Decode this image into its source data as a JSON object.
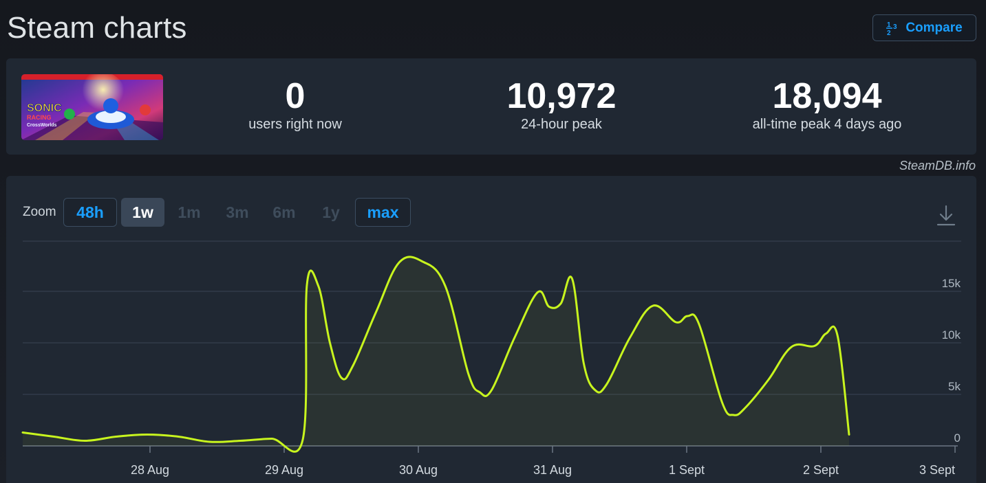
{
  "page": {
    "title": "Steam charts"
  },
  "compare": {
    "label": "Compare",
    "icon": "fraction-icon"
  },
  "stats": [
    {
      "value": "0",
      "label": "users right now"
    },
    {
      "value": "10,972",
      "label": "24-hour peak"
    },
    {
      "value": "18,094",
      "label": "all-time peak 4 days ago"
    }
  ],
  "attribution": "SteamDB.info",
  "zoom": {
    "label": "Zoom",
    "options": [
      {
        "label": "48h",
        "state": "outlined"
      },
      {
        "label": "1w",
        "state": "active"
      },
      {
        "label": "1m",
        "state": "disabled"
      },
      {
        "label": "3m",
        "state": "disabled"
      },
      {
        "label": "6m",
        "state": "disabled"
      },
      {
        "label": "1y",
        "state": "disabled"
      },
      {
        "label": "max",
        "state": "outlined"
      }
    ]
  },
  "download": {
    "icon": "download-icon"
  },
  "chart_data": {
    "type": "line",
    "series": [
      {
        "color": "#c8f51e",
        "points": [
          [
            0.0,
            1300
          ],
          [
            0.5,
            900
          ],
          [
            1.0,
            500
          ],
          [
            1.5,
            900
          ],
          [
            2.0,
            1100
          ],
          [
            2.5,
            900
          ],
          [
            3.0,
            400
          ],
          [
            3.5,
            500
          ],
          [
            4.0,
            700
          ],
          [
            4.5,
            600
          ],
          [
            5.0,
            15600
          ],
          [
            5.25,
            15500
          ],
          [
            5.5,
            10000
          ],
          [
            5.75,
            6600
          ],
          [
            6.0,
            7800
          ],
          [
            6.5,
            13000
          ],
          [
            7.0,
            17800
          ],
          [
            7.5,
            17900
          ],
          [
            8.0,
            15500
          ],
          [
            8.5,
            7000
          ],
          [
            8.75,
            5200
          ],
          [
            9.0,
            5400
          ],
          [
            9.5,
            10500
          ],
          [
            10.0,
            14900
          ],
          [
            10.25,
            13500
          ],
          [
            10.5,
            13800
          ],
          [
            10.75,
            16200
          ],
          [
            11.0,
            8000
          ],
          [
            11.25,
            5400
          ],
          [
            11.5,
            6000
          ],
          [
            12.0,
            10500
          ],
          [
            12.5,
            13600
          ],
          [
            13.0,
            12000
          ],
          [
            13.25,
            12600
          ],
          [
            13.5,
            11800
          ],
          [
            14.0,
            4200
          ],
          [
            14.25,
            3000
          ],
          [
            14.5,
            3700
          ],
          [
            15.0,
            6400
          ],
          [
            15.5,
            9600
          ],
          [
            16.0,
            9700
          ],
          [
            16.25,
            10900
          ],
          [
            16.5,
            10700
          ],
          [
            16.75,
            1100
          ]
        ]
      }
    ],
    "x_ticks": [
      "28 Aug",
      "29 Aug",
      "30 Aug",
      "31 Aug",
      "1 Sept",
      "2 Sept",
      "3 Sept"
    ],
    "y_ticks": [
      0,
      5000,
      10000,
      15000
    ],
    "y_tick_labels": [
      "0",
      "5k",
      "10k",
      "15k"
    ],
    "ylim": [
      0,
      20000
    ],
    "grid": true,
    "legend": "none"
  }
}
